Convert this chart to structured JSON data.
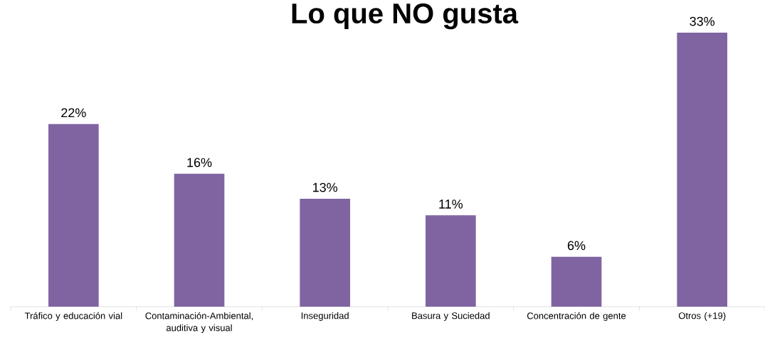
{
  "chart_data": {
    "type": "bar",
    "title": "Lo que NO gusta",
    "categories": [
      "Tráfico y educación vial",
      "Contaminación-Ambiental, auditiva y visual",
      "Inseguridad",
      "Basura y Suciedad",
      "Concentración de gente",
      "Otros (+19)"
    ],
    "values": [
      22,
      16,
      13,
      11,
      6,
      33
    ],
    "value_labels": [
      "22%",
      "16%",
      "13%",
      "11%",
      "6%",
      "33%"
    ],
    "color": "#8064a2",
    "tick_labels": "x"
  }
}
